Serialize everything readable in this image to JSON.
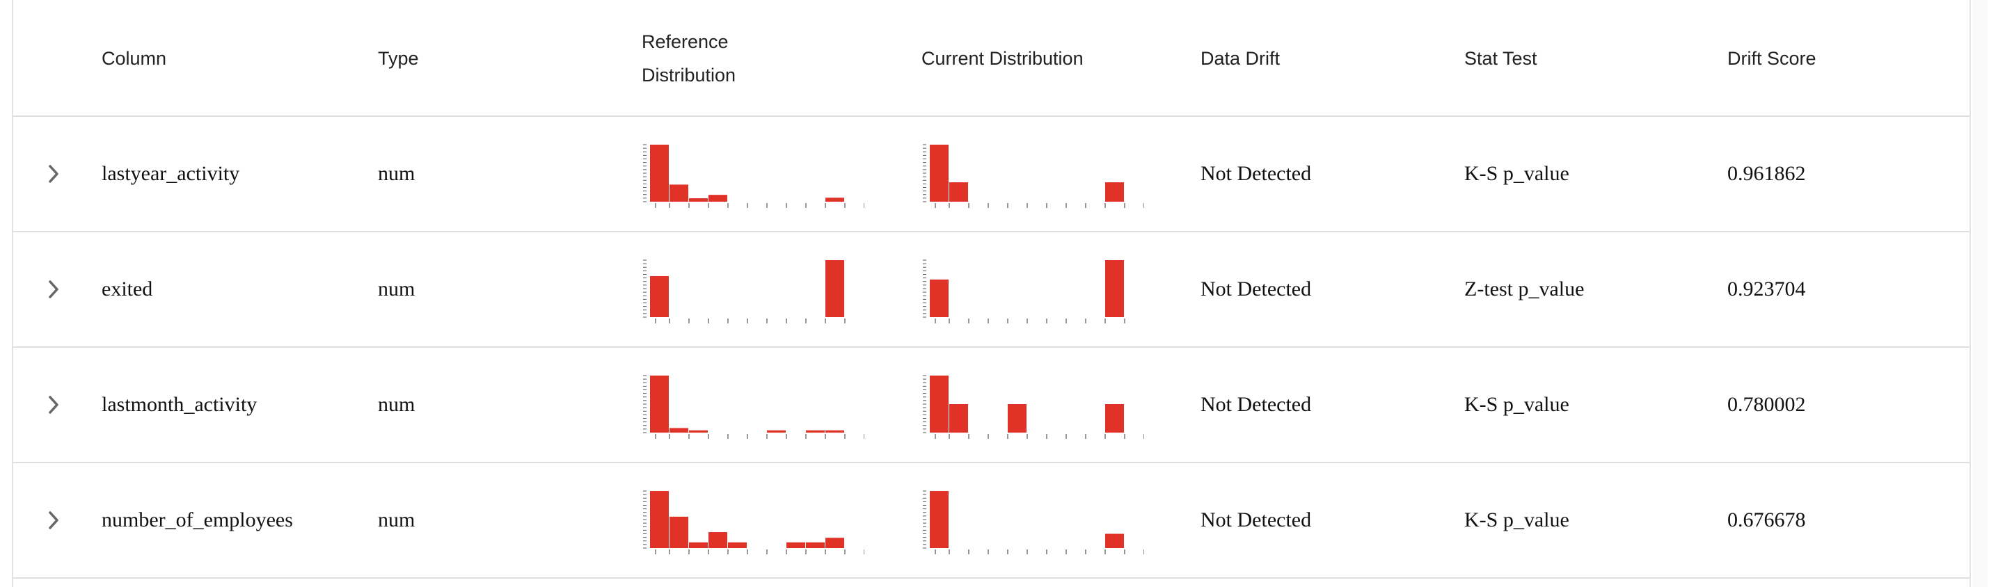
{
  "header": {
    "column": "Column",
    "type": "Type",
    "reference_line1": "Reference",
    "reference_line2": "Distribution",
    "current": "Current Distribution",
    "data_drift": "Data Drift",
    "stat_test": "Stat Test",
    "drift_score": "Drift Score"
  },
  "colors": {
    "bar": "#e03226",
    "border": "#e0e0e0",
    "text": "#111111",
    "chevron": "#666666"
  },
  "icons": {
    "expand": "chevron-right-icon"
  },
  "rows": [
    {
      "column": "lastyear_activity",
      "type": "num",
      "data_drift": "Not Detected",
      "stat_test": "K-S p_value",
      "drift_score": "0.961862",
      "reference_hist": [
        1.0,
        0.3,
        0.06,
        0.12,
        0,
        0,
        0,
        0,
        0,
        0.07,
        0
      ],
      "current_hist": [
        1.0,
        0.34,
        0,
        0,
        0,
        0,
        0,
        0,
        0,
        0.34,
        0
      ]
    },
    {
      "column": "exited",
      "type": "num",
      "data_drift": "Not Detected",
      "stat_test": "Z-test p_value",
      "drift_score": "0.923704",
      "reference_hist": [
        0.72,
        0,
        0,
        0,
        0,
        0,
        0,
        0,
        0,
        1.0
      ],
      "current_hist": [
        0.66,
        0,
        0,
        0,
        0,
        0,
        0,
        0,
        0,
        1.0
      ]
    },
    {
      "column": "lastmonth_activity",
      "type": "num",
      "data_drift": "Not Detected",
      "stat_test": "K-S p_value",
      "drift_score": "0.780002",
      "reference_hist": [
        1.0,
        0.08,
        0.04,
        0,
        0,
        0,
        0.04,
        0,
        0.04,
        0.04,
        0
      ],
      "current_hist": [
        1.0,
        0.5,
        0,
        0,
        0.5,
        0,
        0,
        0,
        0,
        0.5,
        0
      ]
    },
    {
      "column": "number_of_employees",
      "type": "num",
      "data_drift": "Not Detected",
      "stat_test": "K-S p_value",
      "drift_score": "0.676678",
      "reference_hist": [
        1.0,
        0.55,
        0.1,
        0.28,
        0.1,
        0,
        0,
        0.1,
        0.1,
        0.18,
        0
      ],
      "current_hist": [
        1.0,
        0,
        0,
        0,
        0,
        0,
        0,
        0,
        0,
        0.25,
        0
      ]
    }
  ]
}
